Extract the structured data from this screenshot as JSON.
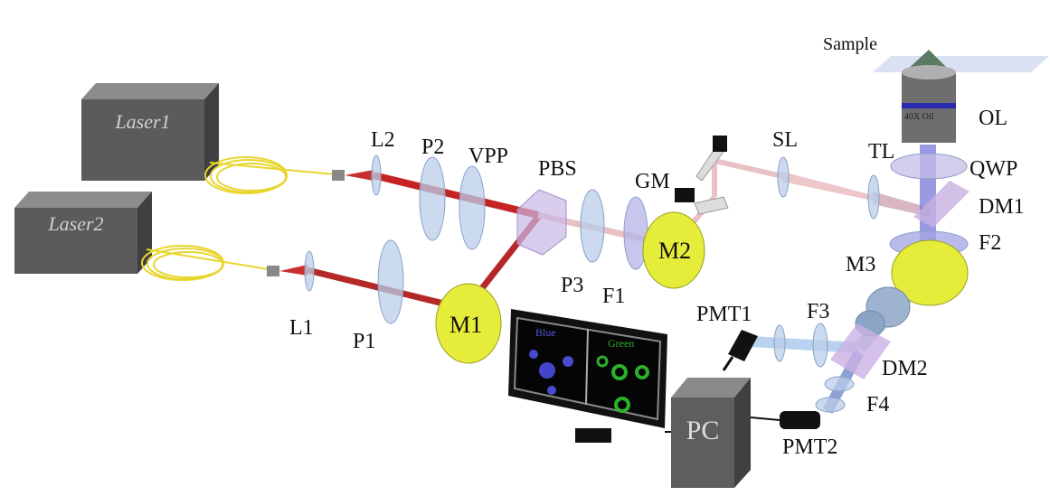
{
  "labels": {
    "laser1": "Laser1",
    "laser2": "Laser2",
    "l1": "L1",
    "l2": "L2",
    "p1": "P1",
    "p2": "P2",
    "p3": "P3",
    "vpp": "VPP",
    "pbs": "PBS",
    "gm": "GM",
    "sl": "SL",
    "tl": "TL",
    "ol": "OL",
    "ol_mark": "40X Oil",
    "sample": "Sample",
    "qwp": "QWP",
    "dm1": "DM1",
    "f2": "F2",
    "m1": "M1",
    "m2": "M2",
    "m3": "M3",
    "f1": "F1",
    "f3": "F3",
    "f4": "F4",
    "dm2": "DM2",
    "pmt1": "PMT1",
    "pmt2": "PMT2",
    "pc": "PC",
    "blue": "Blue",
    "green": "Green"
  }
}
